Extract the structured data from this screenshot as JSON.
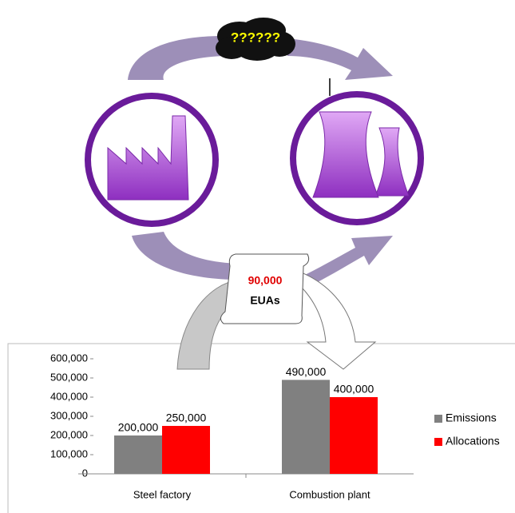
{
  "diagram": {
    "cloud_label": "??????",
    "scroll_value": "90,000",
    "scroll_unit": "EUAs"
  },
  "chart_data": {
    "type": "bar",
    "categories": [
      "Steel factory",
      "Combustion plant"
    ],
    "series": [
      {
        "name": "Emissions",
        "color": "#808080",
        "values": [
          200000,
          490000
        ],
        "value_labels": [
          "200,000",
          "490,000"
        ]
      },
      {
        "name": "Allocations",
        "color": "#ff0000",
        "values": [
          250000,
          400000
        ],
        "value_labels": [
          "250,000",
          "400,000"
        ]
      }
    ],
    "ylim": [
      0,
      600000
    ],
    "yticks": [
      0,
      {
        "value": 100000,
        "label": "100,000"
      },
      {
        "value": 200000,
        "label": "200,000"
      },
      {
        "value": 300000,
        "label": "300,000"
      },
      {
        "value": 400000,
        "label": "400,000"
      },
      {
        "value": 500000,
        "label": "500,000"
      },
      {
        "value": 600000,
        "label": "600,000"
      }
    ],
    "legend": "right"
  }
}
